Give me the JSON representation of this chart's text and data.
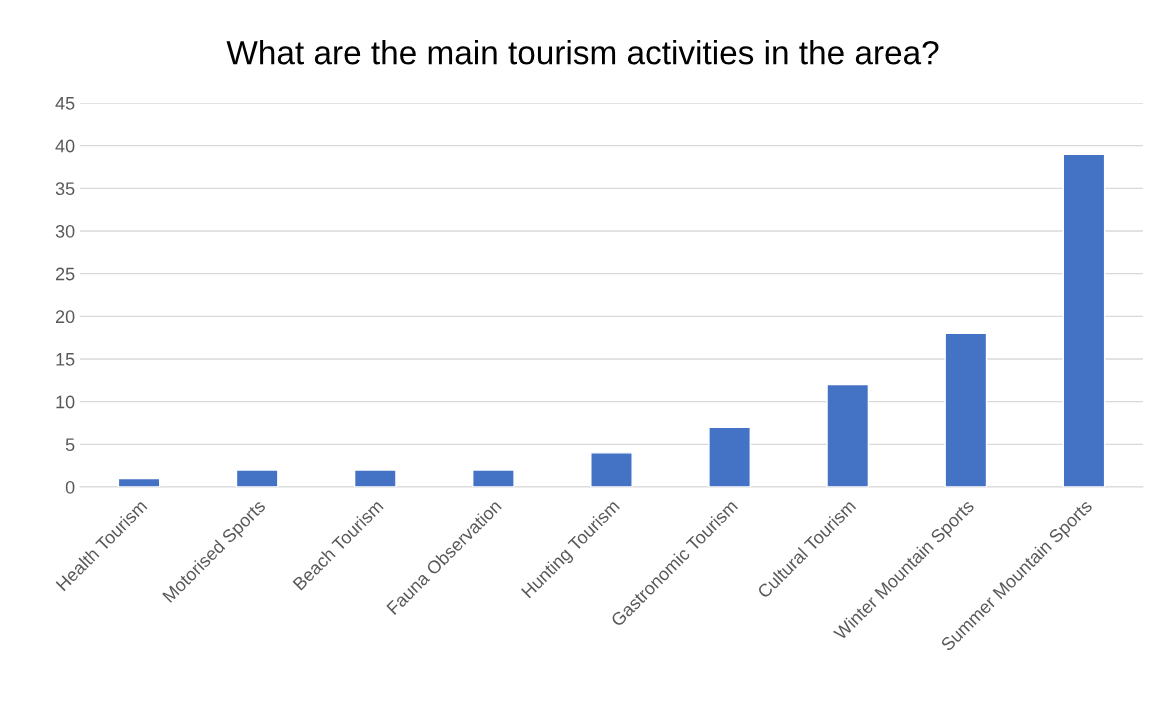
{
  "chart_data": {
    "type": "bar",
    "title": "What are the main tourism activities in the area?",
    "categories": [
      "Health Tourism",
      "Motorised Sports",
      "Beach Tourism",
      "Fauna Observation",
      "Hunting Tourism",
      "Gastronomic Tourism",
      "Cultural Tourism",
      "Winter Mountain Sports",
      "Summer Mountain Sports"
    ],
    "values": [
      1,
      2,
      2,
      2,
      4,
      7,
      12,
      18,
      39
    ],
    "color": "#4472c4",
    "ylim": [
      0,
      45
    ],
    "yticks": [
      0,
      5,
      10,
      15,
      20,
      25,
      30,
      35,
      40,
      45
    ],
    "grid": "y"
  }
}
